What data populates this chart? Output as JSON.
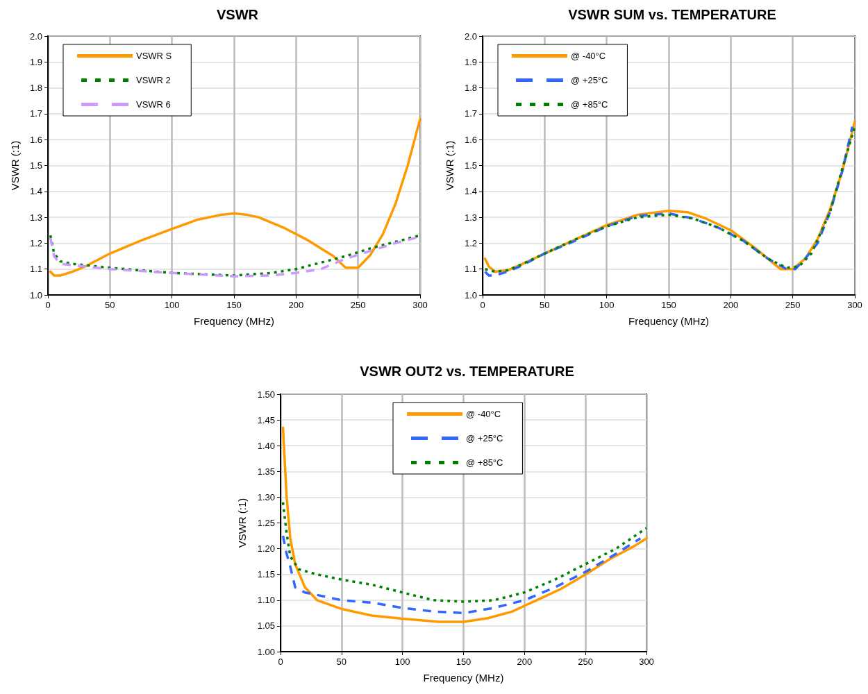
{
  "chart_data": [
    {
      "type": "line",
      "title": "VSWR",
      "xlabel": "Frequency (MHz)",
      "ylabel": "VSWR (:1)",
      "xlim": [
        0,
        300
      ],
      "xticks": [
        0,
        50,
        100,
        150,
        200,
        250,
        300
      ],
      "ylim": [
        1,
        2
      ],
      "yticks": [
        {
          "value": 1,
          "label": "1.0"
        },
        {
          "value": 1.1,
          "label": "1.1"
        },
        {
          "value": 1.2,
          "label": "1.2"
        },
        {
          "value": 1.3,
          "label": "1.3"
        },
        {
          "value": 1.4,
          "label": "1.4"
        },
        {
          "value": 1.5,
          "label": "1.5"
        },
        {
          "value": 1.6,
          "label": "1.6"
        },
        {
          "value": 1.7,
          "label": "1.7"
        },
        {
          "value": 1.8,
          "label": "1.8"
        },
        {
          "value": 1.9,
          "label": "1.9"
        },
        {
          "value": 2,
          "label": "2.0"
        }
      ],
      "grid": true,
      "legend": "top left",
      "marker": "none",
      "series": [
        {
          "name": "VSWR S",
          "color": "#ff9900",
          "line_style": "solid",
          "x": [
            2,
            5,
            10,
            20,
            30,
            50,
            75,
            100,
            120,
            140,
            150,
            160,
            170,
            190,
            210,
            230,
            240,
            250,
            260,
            270,
            280,
            290,
            300
          ],
          "values": [
            1.09,
            1.075,
            1.075,
            1.09,
            1.11,
            1.16,
            1.21,
            1.255,
            1.29,
            1.31,
            1.315,
            1.31,
            1.3,
            1.26,
            1.21,
            1.15,
            1.105,
            1.105,
            1.155,
            1.235,
            1.35,
            1.5,
            1.68
          ]
        },
        {
          "name": "VSWR 2",
          "color": "#008000",
          "line_style": "dotted",
          "x": [
            2,
            5,
            10,
            20,
            50,
            100,
            150,
            180,
            200,
            220,
            240,
            260,
            280,
            300
          ],
          "values": [
            1.23,
            1.16,
            1.13,
            1.12,
            1.105,
            1.085,
            1.075,
            1.085,
            1.1,
            1.125,
            1.15,
            1.18,
            1.205,
            1.23
          ]
        },
        {
          "name": "VSWR 6",
          "color": "#cc99ff",
          "line_style": "dashed",
          "x": [
            2,
            5,
            10,
            20,
            50,
            100,
            150,
            180,
            200,
            220,
            240,
            260,
            280,
            300
          ],
          "values": [
            1.22,
            1.15,
            1.12,
            1.115,
            1.1,
            1.085,
            1.072,
            1.075,
            1.085,
            1.1,
            1.14,
            1.17,
            1.2,
            1.225
          ]
        }
      ]
    },
    {
      "type": "line",
      "title": "VSWR SUM vs. TEMPERATURE",
      "xlabel": "Frequency (MHz)",
      "ylabel": "VSWR (:1)",
      "xlim": [
        0,
        300
      ],
      "xticks": [
        0,
        50,
        100,
        150,
        200,
        250,
        300
      ],
      "ylim": [
        1,
        2
      ],
      "yticks": [
        {
          "value": 1,
          "label": "1.0"
        },
        {
          "value": 1.1,
          "label": "1.1"
        },
        {
          "value": 1.2,
          "label": "1.2"
        },
        {
          "value": 1.3,
          "label": "1.3"
        },
        {
          "value": 1.4,
          "label": "1.4"
        },
        {
          "value": 1.5,
          "label": "1.5"
        },
        {
          "value": 1.6,
          "label": "1.6"
        },
        {
          "value": 1.7,
          "label": "1.7"
        },
        {
          "value": 1.8,
          "label": "1.8"
        },
        {
          "value": 1.9,
          "label": "1.9"
        },
        {
          "value": 2,
          "label": "2.0"
        }
      ],
      "grid": true,
      "legend": "top left",
      "marker": "none",
      "series": [
        {
          "name": "@ -40°C",
          "color": "#ff9900",
          "line_style": "solid",
          "x": [
            2,
            5,
            10,
            20,
            30,
            50,
            75,
            100,
            125,
            150,
            165,
            180,
            200,
            220,
            240,
            250,
            260,
            270,
            280,
            290,
            300
          ],
          "values": [
            1.14,
            1.11,
            1.09,
            1.095,
            1.115,
            1.16,
            1.215,
            1.27,
            1.31,
            1.325,
            1.32,
            1.295,
            1.25,
            1.18,
            1.1,
            1.1,
            1.14,
            1.215,
            1.33,
            1.48,
            1.67
          ]
        },
        {
          "name": "@ +25°C",
          "color": "#3366ff",
          "line_style": "dashed",
          "x": [
            2,
            5,
            10,
            20,
            30,
            50,
            75,
            100,
            125,
            150,
            170,
            190,
            210,
            230,
            245,
            252,
            260,
            270,
            280,
            290,
            298
          ],
          "values": [
            1.09,
            1.075,
            1.075,
            1.09,
            1.11,
            1.16,
            1.21,
            1.265,
            1.305,
            1.315,
            1.295,
            1.26,
            1.21,
            1.14,
            1.1,
            1.1,
            1.14,
            1.2,
            1.32,
            1.48,
            1.65
          ]
        },
        {
          "name": "@ +85°C",
          "color": "#008000",
          "line_style": "dotted",
          "x": [
            2,
            10,
            20,
            30,
            50,
            75,
            100,
            125,
            150,
            170,
            190,
            210,
            230,
            245,
            255,
            265,
            280,
            290,
            300
          ],
          "values": [
            1.1,
            1.09,
            1.095,
            1.115,
            1.16,
            1.215,
            1.265,
            1.3,
            1.31,
            1.295,
            1.26,
            1.21,
            1.14,
            1.105,
            1.11,
            1.16,
            1.32,
            1.49,
            1.65
          ]
        }
      ]
    },
    {
      "type": "line",
      "title": "VSWR OUT2 vs. TEMPERATURE",
      "xlabel": "Frequency (MHz)",
      "ylabel": "VSWR (:1)",
      "xlim": [
        0,
        300
      ],
      "xticks": [
        0,
        50,
        100,
        150,
        200,
        250,
        300
      ],
      "ylim": [
        1,
        1.5
      ],
      "yticks": [
        {
          "value": 1,
          "label": "1.00"
        },
        {
          "value": 1.05,
          "label": "1.05"
        },
        {
          "value": 1.1,
          "label": "1.10"
        },
        {
          "value": 1.15,
          "label": "1.15"
        },
        {
          "value": 1.2,
          "label": "1.20"
        },
        {
          "value": 1.25,
          "label": "1.25"
        },
        {
          "value": 1.3,
          "label": "1.30"
        },
        {
          "value": 1.35,
          "label": "1.35"
        },
        {
          "value": 1.4,
          "label": "1.40"
        },
        {
          "value": 1.45,
          "label": "1.45"
        },
        {
          "value": 1.5,
          "label": "1.50"
        }
      ],
      "grid": true,
      "legend": "top",
      "marker": "none",
      "series": [
        {
          "name": "@ -40°C",
          "color": "#ff9900",
          "line_style": "solid",
          "x": [
            2,
            5,
            8,
            12,
            20,
            30,
            50,
            75,
            100,
            130,
            150,
            170,
            190,
            210,
            230,
            250,
            270,
            290,
            300
          ],
          "values": [
            1.435,
            1.3,
            1.22,
            1.17,
            1.125,
            1.1,
            1.083,
            1.07,
            1.064,
            1.058,
            1.058,
            1.065,
            1.078,
            1.1,
            1.122,
            1.15,
            1.18,
            1.205,
            1.22
          ]
        },
        {
          "name": "@ +25°C",
          "color": "#3366ff",
          "line_style": "dashed",
          "x": [
            2,
            5,
            8,
            12,
            20,
            50,
            75,
            100,
            125,
            150,
            175,
            200,
            225,
            250,
            275,
            295
          ],
          "values": [
            1.225,
            1.19,
            1.165,
            1.125,
            1.115,
            1.1,
            1.095,
            1.085,
            1.078,
            1.075,
            1.085,
            1.1,
            1.125,
            1.155,
            1.19,
            1.22
          ]
        },
        {
          "name": "@ +85°C",
          "color": "#008000",
          "line_style": "dotted",
          "x": [
            2,
            5,
            8,
            15,
            30,
            50,
            75,
            100,
            125,
            150,
            175,
            200,
            225,
            250,
            275,
            300
          ],
          "values": [
            1.29,
            1.23,
            1.185,
            1.16,
            1.15,
            1.14,
            1.13,
            1.115,
            1.1,
            1.097,
            1.1,
            1.115,
            1.14,
            1.17,
            1.2,
            1.24
          ]
        }
      ]
    }
  ]
}
